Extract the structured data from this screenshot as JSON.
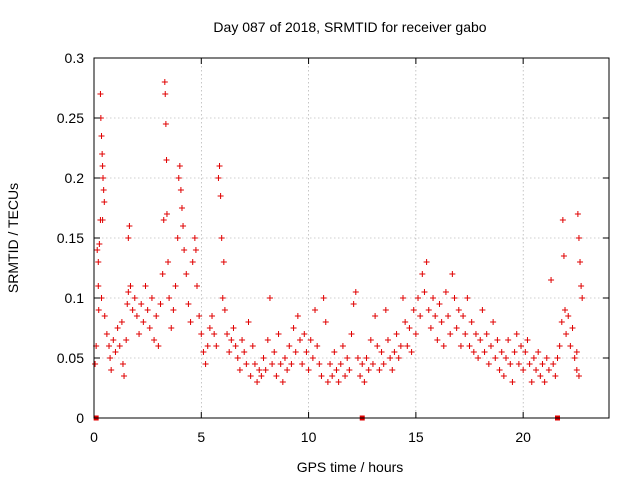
{
  "chart_data": {
    "type": "scatter",
    "title": "Day 087 of 2018, SRMTID for receiver gabo",
    "xlabel": "GPS time / hours",
    "ylabel": "SRMTID / TECUs",
    "xlim": [
      0,
      24
    ],
    "ylim": [
      0,
      0.3
    ],
    "xticks": [
      0,
      5,
      10,
      15,
      20
    ],
    "xtick_labels": [
      "0",
      "5",
      "10",
      "15",
      "20"
    ],
    "yticks": [
      0,
      0.05,
      0.1,
      0.15,
      0.2,
      0.25,
      0.3
    ],
    "ytick_labels": [
      "0",
      "0.05",
      "0.1",
      "0.15",
      "0.2",
      "0.25",
      "0.3"
    ],
    "grid": true,
    "marker": "plus",
    "color": "#e00000",
    "zero_markers_x": [
      0.1,
      12.5,
      21.6
    ],
    "series": [
      {
        "name": "SRMTID",
        "points": [
          [
            0.05,
            0.045
          ],
          [
            0.1,
            0.06
          ],
          [
            0.15,
            0.14
          ],
          [
            0.2,
            0.13
          ],
          [
            0.22,
            0.09
          ],
          [
            0.25,
            0.145
          ],
          [
            0.3,
            0.27
          ],
          [
            0.32,
            0.25
          ],
          [
            0.35,
            0.235
          ],
          [
            0.38,
            0.22
          ],
          [
            0.4,
            0.21
          ],
          [
            0.42,
            0.2
          ],
          [
            0.45,
            0.19
          ],
          [
            0.48,
            0.18
          ],
          [
            0.3,
            0.165
          ],
          [
            0.4,
            0.165
          ],
          [
            0.2,
            0.11
          ],
          [
            0.35,
            0.1
          ],
          [
            0.5,
            0.085
          ],
          [
            0.6,
            0.07
          ],
          [
            0.7,
            0.06
          ],
          [
            0.75,
            0.05
          ],
          [
            0.8,
            0.04
          ],
          [
            0.9,
            0.065
          ],
          [
            1.0,
            0.055
          ],
          [
            1.1,
            0.075
          ],
          [
            1.2,
            0.06
          ],
          [
            1.3,
            0.08
          ],
          [
            1.35,
            0.045
          ],
          [
            1.4,
            0.035
          ],
          [
            1.5,
            0.065
          ],
          [
            1.55,
            0.095
          ],
          [
            1.6,
            0.105
          ],
          [
            1.6,
            0.15
          ],
          [
            1.65,
            0.16
          ],
          [
            1.7,
            0.11
          ],
          [
            1.8,
            0.09
          ],
          [
            1.9,
            0.1
          ],
          [
            2.0,
            0.085
          ],
          [
            2.1,
            0.07
          ],
          [
            2.2,
            0.095
          ],
          [
            2.3,
            0.08
          ],
          [
            2.4,
            0.11
          ],
          [
            2.5,
            0.09
          ],
          [
            2.6,
            0.075
          ],
          [
            2.7,
            0.1
          ],
          [
            2.8,
            0.065
          ],
          [
            2.9,
            0.085
          ],
          [
            3.0,
            0.06
          ],
          [
            3.1,
            0.095
          ],
          [
            3.2,
            0.12
          ],
          [
            3.25,
            0.165
          ],
          [
            3.3,
            0.28
          ],
          [
            3.32,
            0.27
          ],
          [
            3.35,
            0.245
          ],
          [
            3.38,
            0.215
          ],
          [
            3.4,
            0.17
          ],
          [
            3.45,
            0.13
          ],
          [
            3.5,
            0.1
          ],
          [
            3.6,
            0.075
          ],
          [
            3.7,
            0.09
          ],
          [
            3.8,
            0.11
          ],
          [
            3.9,
            0.15
          ],
          [
            3.95,
            0.2
          ],
          [
            4.0,
            0.21
          ],
          [
            4.05,
            0.19
          ],
          [
            4.1,
            0.175
          ],
          [
            4.15,
            0.16
          ],
          [
            4.2,
            0.14
          ],
          [
            4.3,
            0.12
          ],
          [
            4.4,
            0.095
          ],
          [
            4.5,
            0.08
          ],
          [
            4.6,
            0.13
          ],
          [
            4.7,
            0.15
          ],
          [
            4.75,
            0.14
          ],
          [
            4.8,
            0.11
          ],
          [
            4.9,
            0.085
          ],
          [
            5.0,
            0.07
          ],
          [
            5.1,
            0.055
          ],
          [
            5.2,
            0.045
          ],
          [
            5.3,
            0.06
          ],
          [
            5.4,
            0.075
          ],
          [
            5.5,
            0.085
          ],
          [
            5.6,
            0.07
          ],
          [
            5.7,
            0.06
          ],
          [
            5.8,
            0.2
          ],
          [
            5.85,
            0.21
          ],
          [
            5.9,
            0.185
          ],
          [
            5.95,
            0.15
          ],
          [
            6.0,
            0.1
          ],
          [
            6.05,
            0.13
          ],
          [
            6.1,
            0.09
          ],
          [
            6.2,
            0.07
          ],
          [
            6.3,
            0.055
          ],
          [
            6.4,
            0.065
          ],
          [
            6.5,
            0.075
          ],
          [
            6.6,
            0.06
          ],
          [
            6.7,
            0.05
          ],
          [
            6.8,
            0.04
          ],
          [
            6.9,
            0.065
          ],
          [
            7.0,
            0.055
          ],
          [
            7.1,
            0.045
          ],
          [
            7.2,
            0.08
          ],
          [
            7.3,
            0.035
          ],
          [
            7.4,
            0.06
          ],
          [
            7.5,
            0.045
          ],
          [
            7.6,
            0.03
          ],
          [
            7.7,
            0.04
          ],
          [
            7.8,
            0.035
          ],
          [
            7.9,
            0.05
          ],
          [
            8.0,
            0.04
          ],
          [
            8.1,
            0.065
          ],
          [
            8.2,
            0.1
          ],
          [
            8.3,
            0.045
          ],
          [
            8.4,
            0.055
          ],
          [
            8.5,
            0.035
          ],
          [
            8.6,
            0.07
          ],
          [
            8.7,
            0.045
          ],
          [
            8.8,
            0.03
          ],
          [
            8.9,
            0.05
          ],
          [
            9.0,
            0.04
          ],
          [
            9.1,
            0.06
          ],
          [
            9.2,
            0.045
          ],
          [
            9.3,
            0.075
          ],
          [
            9.4,
            0.055
          ],
          [
            9.5,
            0.085
          ],
          [
            9.6,
            0.065
          ],
          [
            9.7,
            0.045
          ],
          [
            9.8,
            0.07
          ],
          [
            9.9,
            0.055
          ],
          [
            10.0,
            0.04
          ],
          [
            10.1,
            0.065
          ],
          [
            10.2,
            0.05
          ],
          [
            10.3,
            0.09
          ],
          [
            10.4,
            0.06
          ],
          [
            10.5,
            0.045
          ],
          [
            10.6,
            0.035
          ],
          [
            10.7,
            0.1
          ],
          [
            10.8,
            0.08
          ],
          [
            10.9,
            0.03
          ],
          [
            11.0,
            0.045
          ],
          [
            11.1,
            0.035
          ],
          [
            11.2,
            0.055
          ],
          [
            11.3,
            0.04
          ],
          [
            11.4,
            0.03
          ],
          [
            11.5,
            0.045
          ],
          [
            11.6,
            0.06
          ],
          [
            11.7,
            0.035
          ],
          [
            11.8,
            0.05
          ],
          [
            11.9,
            0.04
          ],
          [
            12.0,
            0.07
          ],
          [
            12.1,
            0.095
          ],
          [
            12.2,
            0.105
          ],
          [
            12.3,
            0.05
          ],
          [
            12.4,
            0.035
          ],
          [
            12.5,
            0.045
          ],
          [
            12.6,
            0.03
          ],
          [
            12.7,
            0.05
          ],
          [
            12.8,
            0.04
          ],
          [
            12.9,
            0.065
          ],
          [
            13.0,
            0.045
          ],
          [
            13.1,
            0.085
          ],
          [
            13.2,
            0.06
          ],
          [
            13.3,
            0.04
          ],
          [
            13.4,
            0.055
          ],
          [
            13.5,
            0.045
          ],
          [
            13.6,
            0.09
          ],
          [
            13.7,
            0.065
          ],
          [
            13.8,
            0.05
          ],
          [
            13.9,
            0.04
          ],
          [
            14.0,
            0.055
          ],
          [
            14.1,
            0.07
          ],
          [
            14.2,
            0.05
          ],
          [
            14.3,
            0.06
          ],
          [
            14.4,
            0.1
          ],
          [
            14.5,
            0.08
          ],
          [
            14.6,
            0.06
          ],
          [
            14.7,
            0.075
          ],
          [
            14.8,
            0.055
          ],
          [
            14.9,
            0.09
          ],
          [
            15.0,
            0.07
          ],
          [
            15.1,
            0.1
          ],
          [
            15.2,
            0.085
          ],
          [
            15.3,
            0.12
          ],
          [
            15.4,
            0.105
          ],
          [
            15.5,
            0.13
          ],
          [
            15.6,
            0.09
          ],
          [
            15.7,
            0.075
          ],
          [
            15.8,
            0.1
          ],
          [
            15.9,
            0.085
          ],
          [
            16.0,
            0.065
          ],
          [
            16.1,
            0.095
          ],
          [
            16.2,
            0.08
          ],
          [
            16.3,
            0.06
          ],
          [
            16.4,
            0.105
          ],
          [
            16.5,
            0.085
          ],
          [
            16.6,
            0.07
          ],
          [
            16.7,
            0.12
          ],
          [
            16.8,
            0.1
          ],
          [
            16.9,
            0.075
          ],
          [
            17.0,
            0.09
          ],
          [
            17.1,
            0.06
          ],
          [
            17.2,
            0.085
          ],
          [
            17.3,
            0.07
          ],
          [
            17.4,
            0.1
          ],
          [
            17.5,
            0.06
          ],
          [
            17.6,
            0.08
          ],
          [
            17.7,
            0.055
          ],
          [
            17.8,
            0.07
          ],
          [
            17.9,
            0.05
          ],
          [
            18.0,
            0.065
          ],
          [
            18.1,
            0.09
          ],
          [
            18.2,
            0.055
          ],
          [
            18.3,
            0.07
          ],
          [
            18.4,
            0.045
          ],
          [
            18.5,
            0.06
          ],
          [
            18.6,
            0.08
          ],
          [
            18.7,
            0.05
          ],
          [
            18.8,
            0.065
          ],
          [
            18.9,
            0.04
          ],
          [
            19.0,
            0.055
          ],
          [
            19.1,
            0.035
          ],
          [
            19.2,
            0.05
          ],
          [
            19.3,
            0.065
          ],
          [
            19.4,
            0.045
          ],
          [
            19.5,
            0.03
          ],
          [
            19.6,
            0.055
          ],
          [
            19.7,
            0.07
          ],
          [
            19.8,
            0.045
          ],
          [
            19.9,
            0.06
          ],
          [
            20.0,
            0.04
          ],
          [
            20.1,
            0.055
          ],
          [
            20.2,
            0.065
          ],
          [
            20.3,
            0.045
          ],
          [
            20.4,
            0.03
          ],
          [
            20.5,
            0.05
          ],
          [
            20.6,
            0.04
          ],
          [
            20.7,
            0.055
          ],
          [
            20.8,
            0.035
          ],
          [
            20.9,
            0.045
          ],
          [
            21.0,
            0.03
          ],
          [
            21.1,
            0.05
          ],
          [
            21.2,
            0.04
          ],
          [
            21.3,
            0.115
          ],
          [
            21.4,
            0.045
          ],
          [
            21.5,
            0.035
          ],
          [
            21.6,
            0.05
          ],
          [
            21.7,
            0.06
          ],
          [
            21.8,
            0.08
          ],
          [
            21.85,
            0.165
          ],
          [
            21.9,
            0.135
          ],
          [
            21.95,
            0.09
          ],
          [
            22.0,
            0.07
          ],
          [
            22.1,
            0.085
          ],
          [
            22.2,
            0.06
          ],
          [
            22.3,
            0.075
          ],
          [
            22.4,
            0.05
          ],
          [
            22.5,
            0.04
          ],
          [
            22.55,
            0.17
          ],
          [
            22.6,
            0.15
          ],
          [
            22.65,
            0.13
          ],
          [
            22.7,
            0.11
          ],
          [
            22.75,
            0.1
          ],
          [
            22.6,
            0.035
          ],
          [
            22.5,
            0.055
          ]
        ]
      }
    ]
  }
}
